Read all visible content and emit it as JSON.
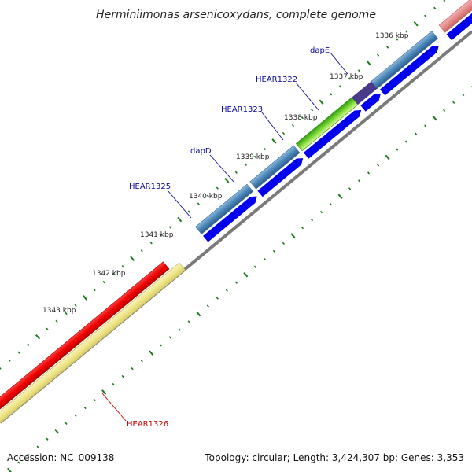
{
  "title": "Herminiimonas arsenicoxydans, complete genome",
  "footer": {
    "accession": "Accession: NC_009138",
    "summary": "Topology: circular; Length: 3,424,307 bp; Genes: 3,353"
  },
  "ruler": [
    {
      "label": "1336 kbp"
    },
    {
      "label": "1337 kbp"
    },
    {
      "label": "1338 kbp"
    },
    {
      "label": "1339 kbp"
    },
    {
      "label": "1340 kbp"
    },
    {
      "label": "1341 kbp"
    },
    {
      "label": "1342 kbp"
    },
    {
      "label": "1343 kbp"
    }
  ],
  "genes": [
    {
      "label": "dapE",
      "color": "#0a0aa0"
    },
    {
      "label": "HEAR1322",
      "color": "#0a0aa0"
    },
    {
      "label": "HEAR1323",
      "color": "#0a0aa0"
    },
    {
      "label": "dapD",
      "color": "#0a0aa0"
    },
    {
      "label": "HEAR1325",
      "color": "#0a0aa0"
    },
    {
      "label": "HEAR1326",
      "color": "#cc0000"
    }
  ],
  "colors": {
    "backbone": "#7a7a7a",
    "cds_forward": "#0000ee",
    "gene_steelblue": "#4a86b8",
    "gene_green": "#3cb820",
    "gene_purple": "#4a3a8a",
    "gene_pink": "#e48a8a",
    "gene_gray": "#b8b8b8",
    "gene_red": "#ee0000",
    "gene_khaki": "#eee68a",
    "tick_green": "#1a7a1a"
  }
}
